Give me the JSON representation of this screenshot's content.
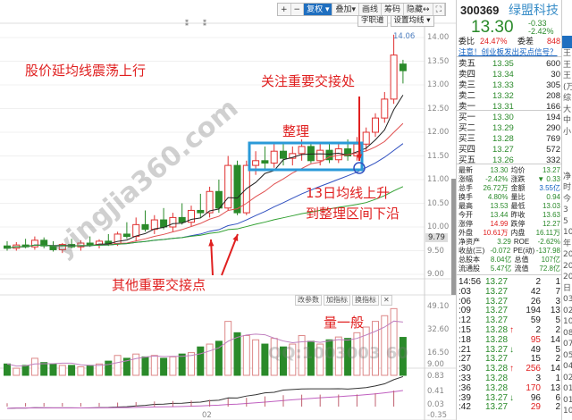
{
  "toolbar": {
    "buttons": [
      "+",
      "−",
      "复权 ▾",
      "叠加▾",
      "画线",
      "筹码",
      "隐藏↔",
      "⛶"
    ],
    "sub": [
      "字职道",
      "设置均线 ▾"
    ]
  },
  "volume_buttons": [
    "改参数",
    "加指标",
    "换指标",
    "✕"
  ],
  "annotations": {
    "main": "股价延均线震荡上行",
    "focus": "关注重要交接处",
    "consolidate": "整理",
    "ma13_1": "13日均线上升",
    "ma13_2": "到整理区间下沿",
    "other": "其他重要交接点",
    "volume": "量一般"
  },
  "watermark": {
    "site": "yingjia360.com",
    "qq": "QQ:1003003 60"
  },
  "axis": {
    "price": [
      "14.00",
      "13.50",
      "13.00",
      "12.50",
      "12.00",
      "11.50",
      "11.00",
      "10.50",
      "10.00",
      "9.50",
      "9.00"
    ],
    "cursor": "9.79",
    "volume": [
      "49.10",
      "32.60",
      "16.50",
      "9.00"
    ],
    "macd": [
      "0.83",
      "0.41",
      "0.03",
      "-0.35"
    ],
    "date_label": "02",
    "high_label": "14.06"
  },
  "chart_data": {
    "type": "candlestick",
    "ohlc": [
      [
        9.6,
        9.7,
        9.5,
        9.55
      ],
      [
        9.55,
        9.68,
        9.5,
        9.62
      ],
      [
        9.62,
        9.75,
        9.55,
        9.58
      ],
      [
        9.58,
        9.8,
        9.52,
        9.72
      ],
      [
        9.72,
        9.78,
        9.55,
        9.6
      ],
      [
        9.6,
        9.7,
        9.48,
        9.52
      ],
      [
        9.52,
        9.66,
        9.45,
        9.63
      ],
      [
        9.63,
        9.75,
        9.55,
        9.58
      ],
      [
        9.58,
        9.72,
        9.5,
        9.66
      ],
      [
        9.66,
        9.8,
        9.58,
        9.62
      ],
      [
        9.62,
        9.74,
        9.55,
        9.7
      ],
      [
        9.7,
        9.85,
        9.6,
        9.65
      ],
      [
        9.65,
        9.9,
        9.6,
        9.85
      ],
      [
        9.85,
        10.1,
        9.75,
        9.8
      ],
      [
        9.8,
        10.2,
        9.7,
        10.05
      ],
      [
        10.05,
        10.35,
        9.9,
        9.95
      ],
      [
        9.95,
        10.25,
        9.85,
        10.15
      ],
      [
        10.15,
        10.4,
        9.95,
        10.0
      ],
      [
        10.0,
        10.3,
        9.9,
        10.2
      ],
      [
        10.2,
        10.5,
        10.05,
        10.1
      ],
      [
        10.1,
        10.45,
        10.0,
        10.35
      ],
      [
        10.35,
        10.7,
        10.2,
        10.3
      ],
      [
        10.3,
        10.85,
        10.2,
        10.75
      ],
      [
        10.75,
        11.0,
        10.3,
        10.4
      ],
      [
        10.4,
        11.5,
        10.35,
        11.3
      ],
      [
        11.3,
        11.4,
        10.25,
        10.3
      ],
      [
        10.3,
        11.4,
        10.25,
        11.3
      ],
      [
        11.3,
        11.6,
        11.1,
        11.4
      ],
      [
        11.4,
        11.7,
        11.2,
        11.35
      ],
      [
        11.35,
        11.75,
        11.25,
        11.6
      ],
      [
        11.6,
        11.8,
        11.3,
        11.45
      ],
      [
        11.45,
        11.7,
        11.3,
        11.55
      ],
      [
        11.55,
        11.85,
        11.4,
        11.7
      ],
      [
        11.7,
        11.8,
        11.35,
        11.4
      ],
      [
        11.4,
        11.75,
        11.3,
        11.62
      ],
      [
        11.62,
        11.75,
        11.35,
        11.42
      ],
      [
        11.42,
        11.8,
        11.35,
        11.65
      ],
      [
        11.65,
        11.85,
        11.4,
        11.5
      ],
      [
        11.5,
        11.9,
        11.4,
        11.75
      ],
      [
        11.75,
        12.1,
        11.6,
        12.0
      ],
      [
        12.0,
        12.4,
        11.9,
        12.3
      ],
      [
        12.3,
        12.85,
        12.2,
        12.7
      ],
      [
        12.7,
        14.06,
        12.6,
        13.63
      ],
      [
        13.44,
        13.53,
        13.03,
        13.3
      ]
    ],
    "volume": [
      8,
      5,
      7,
      12,
      9,
      8,
      7,
      7,
      6,
      7,
      8,
      10,
      14,
      12,
      15,
      13,
      14,
      12,
      13,
      15,
      16,
      20,
      22,
      24,
      38,
      30,
      28,
      25,
      22,
      26,
      20,
      22,
      28,
      24,
      22,
      25,
      27,
      26,
      30,
      34,
      38,
      42,
      47,
      26.72
    ],
    "ylim": [
      9.0,
      14.0
    ],
    "volume_ylim": [
      0,
      49.1
    ],
    "macd_ylim": [
      -0.35,
      0.83
    ],
    "colors": {
      "up": "#e03030",
      "down": "#2a8a2a",
      "ma5": "#222222",
      "ma10": "#e05050",
      "ma20": "#3050c0",
      "ma60": "#30a030"
    }
  },
  "quote": {
    "code": "300369",
    "name": "绿盟科技",
    "price": "13.30",
    "change": "-0.33",
    "pct": "-2.42%",
    "ratio_label": "委比",
    "ratio": "24.47%",
    "diff_label": "委差",
    "diff": "848",
    "notice": "注意！创业板发出买点信号？",
    "sells": [
      [
        "卖五",
        "13.35",
        "600"
      ],
      [
        "卖四",
        "13.34",
        "30"
      ],
      [
        "卖三",
        "13.33",
        "305"
      ],
      [
        "卖二",
        "13.32",
        "208"
      ],
      [
        "卖一",
        "13.31",
        "166"
      ]
    ],
    "buys": [
      [
        "买一",
        "13.30",
        "194"
      ],
      [
        "买二",
        "13.29",
        "290"
      ],
      [
        "买三",
        "13.28",
        "769"
      ],
      [
        "买四",
        "13.27",
        "572"
      ],
      [
        "买五",
        "13.26",
        "332"
      ]
    ],
    "stats": [
      [
        "最新",
        "13.30",
        "均价",
        "13.27"
      ],
      [
        "涨幅",
        "-2.42%",
        "涨跌",
        "▼ 0.33"
      ],
      [
        "总手",
        "26.72万",
        "金额",
        "3.55亿"
      ],
      [
        "换手",
        "4.80%",
        "量比",
        "0.94"
      ],
      [
        "最高",
        "13.53",
        "最低",
        "13.03"
      ],
      [
        "今开",
        "13.44",
        "昨收",
        "13.63"
      ],
      [
        "涨停",
        "14.99",
        "跌停",
        "12.27"
      ],
      [
        "外盘",
        "10.61万",
        "内盘",
        "16.11万"
      ],
      [
        "净资产",
        "3.29",
        "ROE",
        "-2.62%"
      ],
      [
        "收益(三)",
        "-0.072",
        "PE(动)",
        "-137.98"
      ],
      [
        "总股本",
        "8.04亿",
        "总值",
        "107亿"
      ],
      [
        "流通股",
        "5.47亿",
        "流值",
        "72.8亿"
      ]
    ],
    "ticks": [
      [
        "14:56",
        "13.27",
        "",
        "2",
        "1"
      ],
      [
        ":03",
        "13.27",
        "",
        "42",
        "7"
      ],
      [
        ":06",
        "13.27",
        "",
        "26",
        "3"
      ],
      [
        ":09",
        "13.27",
        "",
        "194",
        "13"
      ],
      [
        ":12",
        "13.27",
        "",
        "59",
        "5"
      ],
      [
        ":15",
        "13.28",
        "↑",
        "2",
        "2"
      ],
      [
        ":18",
        "13.28",
        "",
        "95",
        "14"
      ],
      [
        ":21",
        "13.27",
        "↓",
        "49",
        "5"
      ],
      [
        ":27",
        "13.27",
        "",
        "15",
        "2"
      ],
      [
        ":30",
        "13.28",
        "↑",
        "256",
        "14"
      ],
      [
        ":33",
        "13.28",
        "",
        "3",
        "1"
      ],
      [
        ":36",
        "13.28",
        "",
        "170",
        "13"
      ],
      [
        ":39",
        "13.27",
        "↓",
        "96",
        "6"
      ],
      [
        ":42",
        "13.27",
        "",
        "29",
        "2"
      ]
    ]
  },
  "side_col": [
    "王",
    "王",
    "王",
    "(万",
    "综",
    "大",
    "中",
    "小",
    "",
    "",
    "",
    "净",
    "时",
    "今",
    "3",
    "5",
    "10",
    "年",
    "20",
    "20",
    "20",
    "日",
    "03",
    "02",
    "10",
    "08",
    "07",
    "05",
    "04",
    "02",
    "01",
    "01",
    "10"
  ]
}
